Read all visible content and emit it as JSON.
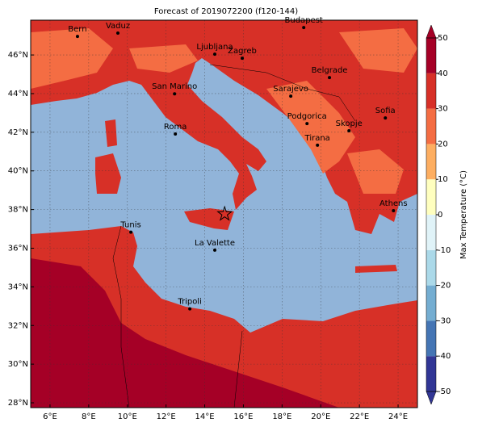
{
  "chart_data": {
    "type": "map",
    "title": "Forecast of 2019072200 (f120-144)",
    "xlim": [
      5,
      25
    ],
    "ylim": [
      27.75,
      47.8
    ],
    "xticks": [
      {
        "value": 6,
        "label": "6°E"
      },
      {
        "value": 8,
        "label": "8°E"
      },
      {
        "value": 10,
        "label": "10°E"
      },
      {
        "value": 12,
        "label": "12°E"
      },
      {
        "value": 14,
        "label": "14°E"
      },
      {
        "value": 16,
        "label": "16°E"
      },
      {
        "value": 18,
        "label": "18°E"
      },
      {
        "value": 20,
        "label": "20°E"
      },
      {
        "value": 22,
        "label": "22°E"
      },
      {
        "value": 24,
        "label": "24°E"
      }
    ],
    "yticks": [
      {
        "value": 28,
        "label": "28°N"
      },
      {
        "value": 30,
        "label": "30°N"
      },
      {
        "value": 32,
        "label": "32°N"
      },
      {
        "value": 34,
        "label": "34°N"
      },
      {
        "value": 36,
        "label": "36°N"
      },
      {
        "value": 38,
        "label": "38°N"
      },
      {
        "value": 40,
        "label": "40°N"
      },
      {
        "value": 42,
        "label": "42°N"
      },
      {
        "value": 44,
        "label": "44°N"
      },
      {
        "value": 46,
        "label": "46°N"
      }
    ],
    "grid": true,
    "cities": [
      {
        "name": "Bern",
        "lon": 7.42,
        "lat": 46.96
      },
      {
        "name": "Vaduz",
        "lon": 9.51,
        "lat": 47.13
      },
      {
        "name": "Budapest",
        "lon": 19.12,
        "lat": 47.42
      },
      {
        "name": "Ljubljana",
        "lon": 14.52,
        "lat": 46.04
      },
      {
        "name": "Zagreb",
        "lon": 15.94,
        "lat": 45.83
      },
      {
        "name": "Belgrade",
        "lon": 20.45,
        "lat": 44.83
      },
      {
        "name": "San Marino",
        "lon": 12.44,
        "lat": 43.99
      },
      {
        "name": "Sarajevo",
        "lon": 18.45,
        "lat": 43.87
      },
      {
        "name": "Sofia",
        "lon": 23.34,
        "lat": 42.74
      },
      {
        "name": "Roma",
        "lon": 12.48,
        "lat": 41.91
      },
      {
        "name": "Podgorica",
        "lon": 19.29,
        "lat": 42.45
      },
      {
        "name": "Skopje",
        "lon": 21.46,
        "lat": 42.08
      },
      {
        "name": "Tirana",
        "lon": 19.83,
        "lat": 41.33
      },
      {
        "name": "Athens",
        "lon": 23.76,
        "lat": 37.94
      },
      {
        "name": "Tunis",
        "lon": 10.18,
        "lat": 36.83
      },
      {
        "name": "La Valette",
        "lon": 14.52,
        "lat": 35.9
      },
      {
        "name": "Tripoli",
        "lon": 13.23,
        "lat": 32.86
      }
    ],
    "star": {
      "lon": 15.03,
      "lat": 37.77
    },
    "colorbar": {
      "label": "Max Temperature (°C)",
      "ticks": [
        -50,
        -40,
        -30,
        -20,
        -10,
        0,
        10,
        20,
        30,
        40,
        50
      ],
      "colors": [
        "#313695",
        "#4575b4",
        "#74add1",
        "#abd9e9",
        "#e0f3f8",
        "#ffffbf",
        "#fdae61",
        "#f46d43",
        "#d73027",
        "#a50026"
      ]
    }
  }
}
